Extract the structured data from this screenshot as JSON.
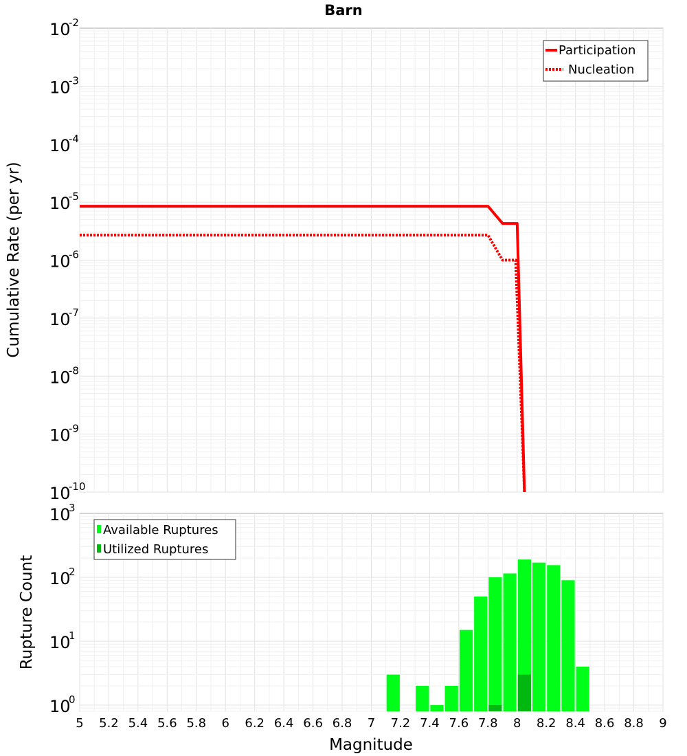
{
  "chart_data": [
    {
      "type": "line",
      "title": "Barn",
      "xlabel": "",
      "ylabel": "Cumulative Rate (per yr)",
      "yscale": "log",
      "xlim": [
        5,
        9
      ],
      "ylim": [
        1e-10,
        0.01
      ],
      "ytick_base": "10",
      "ytick_exponents": [
        "-10",
        "-9",
        "-8",
        "-7",
        "-6",
        "-5",
        "-4",
        "-3",
        "-2"
      ],
      "legend_position": "top-right",
      "series": [
        {
          "name": "Participation",
          "style": "solid",
          "color": "#ff0000",
          "x": [
            5.0,
            7.8,
            7.9,
            8.0,
            8.05
          ],
          "y": [
            8.5e-06,
            8.5e-06,
            4.3e-06,
            4.3e-06,
            1e-10
          ]
        },
        {
          "name": "Nucleation",
          "style": "dotted",
          "color": "#ff0000",
          "x": [
            5.0,
            7.8,
            7.9,
            7.99,
            8.05
          ],
          "y": [
            2.7e-06,
            2.7e-06,
            1e-06,
            1e-06,
            1e-10
          ]
        }
      ]
    },
    {
      "type": "bar",
      "title": "",
      "xlabel": "Magnitude",
      "ylabel": "Rupture Count",
      "yscale": "log",
      "xlim": [
        5,
        9
      ],
      "ylim": [
        0.8,
        1000
      ],
      "ytick_base": "10",
      "ytick_exponents": [
        "0",
        "1",
        "2",
        "3"
      ],
      "xtick_labels": [
        "5",
        "5.2",
        "5.4",
        "5.6",
        "5.8",
        "6",
        "6.2",
        "6.4",
        "6.6",
        "6.8",
        "7",
        "7.2",
        "7.4",
        "7.6",
        "7.8",
        "8",
        "8.2",
        "8.4",
        "8.6",
        "8.8",
        "9"
      ],
      "legend_position": "top-left",
      "bar_width": 0.1,
      "series": [
        {
          "name": "Available Ruptures",
          "color": "#00ff18",
          "x": [
            7.15,
            7.35,
            7.45,
            7.55,
            7.65,
            7.75,
            7.85,
            7.95,
            8.05,
            8.15,
            8.25,
            8.35,
            8.45
          ],
          "values": [
            3,
            2,
            1,
            2,
            15,
            50,
            100,
            115,
            190,
            170,
            155,
            90,
            4
          ]
        },
        {
          "name": "Utilized Ruptures",
          "color": "#00b810",
          "x": [
            7.85,
            8.05
          ],
          "values": [
            1,
            3
          ]
        }
      ]
    }
  ]
}
